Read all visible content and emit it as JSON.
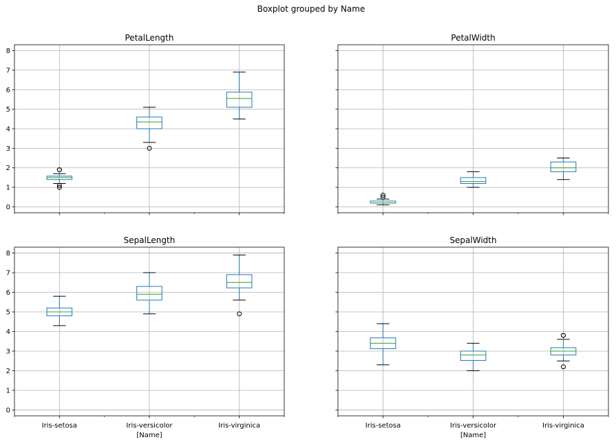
{
  "figure": {
    "suptitle": "Boxplot grouped by Name"
  },
  "chart_data": [
    {
      "type": "boxplot",
      "title": "PetalLength",
      "categories": [
        "Iris-setosa",
        "Iris-versicolor",
        "Iris-virginica"
      ],
      "xlabel": "",
      "ylim": [
        -0.3,
        8.3
      ],
      "yticks": [
        0,
        1,
        2,
        3,
        4,
        5,
        6,
        7,
        8
      ],
      "grid": true,
      "boxes": [
        {
          "whislo": 1.2,
          "q1": 1.4,
          "med": 1.5,
          "q3": 1.575,
          "whishi": 1.7,
          "fliers": [
            1.9,
            1.9,
            1.1,
            1.0
          ]
        },
        {
          "whislo": 3.3,
          "q1": 4.0,
          "med": 4.35,
          "q3": 4.6,
          "whishi": 5.1,
          "fliers": [
            3.0
          ]
        },
        {
          "whislo": 4.5,
          "q1": 5.1,
          "med": 5.55,
          "q3": 5.875,
          "whishi": 6.9,
          "fliers": []
        }
      ]
    },
    {
      "type": "boxplot",
      "title": "PetalWidth",
      "categories": [
        "Iris-setosa",
        "Iris-versicolor",
        "Iris-virginica"
      ],
      "xlabel": "",
      "ylim": [
        -0.3,
        8.3
      ],
      "yticks": [
        0,
        1,
        2,
        3,
        4,
        5,
        6,
        7,
        8
      ],
      "grid": true,
      "boxes": [
        {
          "whislo": 0.1,
          "q1": 0.2,
          "med": 0.2,
          "q3": 0.3,
          "whishi": 0.4,
          "fliers": [
            0.5,
            0.6
          ]
        },
        {
          "whislo": 1.0,
          "q1": 1.2,
          "med": 1.3,
          "q3": 1.5,
          "whishi": 1.8,
          "fliers": []
        },
        {
          "whislo": 1.4,
          "q1": 1.8,
          "med": 2.0,
          "q3": 2.3,
          "whishi": 2.5,
          "fliers": []
        }
      ]
    },
    {
      "type": "boxplot",
      "title": "SepalLength",
      "categories": [
        "Iris-setosa",
        "Iris-versicolor",
        "Iris-virginica"
      ],
      "xlabel": "[Name]",
      "ylim": [
        -0.3,
        8.3
      ],
      "yticks": [
        0,
        1,
        2,
        3,
        4,
        5,
        6,
        7,
        8
      ],
      "grid": true,
      "boxes": [
        {
          "whislo": 4.3,
          "q1": 4.8,
          "med": 5.0,
          "q3": 5.2,
          "whishi": 5.8,
          "fliers": []
        },
        {
          "whislo": 4.9,
          "q1": 5.6,
          "med": 5.9,
          "q3": 6.3,
          "whishi": 7.0,
          "fliers": []
        },
        {
          "whislo": 5.6,
          "q1": 6.225,
          "med": 6.5,
          "q3": 6.9,
          "whishi": 7.9,
          "fliers": [
            4.9
          ]
        }
      ]
    },
    {
      "type": "boxplot",
      "title": "SepalWidth",
      "categories": [
        "Iris-setosa",
        "Iris-versicolor",
        "Iris-virginica"
      ],
      "xlabel": "[Name]",
      "ylim": [
        -0.3,
        8.3
      ],
      "yticks": [
        0,
        1,
        2,
        3,
        4,
        5,
        6,
        7,
        8
      ],
      "grid": true,
      "boxes": [
        {
          "whislo": 2.3,
          "q1": 3.125,
          "med": 3.4,
          "q3": 3.675,
          "whishi": 4.4,
          "fliers": []
        },
        {
          "whislo": 2.0,
          "q1": 2.525,
          "med": 2.8,
          "q3": 3.0,
          "whishi": 3.4,
          "fliers": []
        },
        {
          "whislo": 2.5,
          "q1": 2.8,
          "med": 3.0,
          "q3": 3.175,
          "whishi": 3.6,
          "fliers": [
            3.8,
            3.8,
            2.2
          ]
        }
      ]
    }
  ]
}
